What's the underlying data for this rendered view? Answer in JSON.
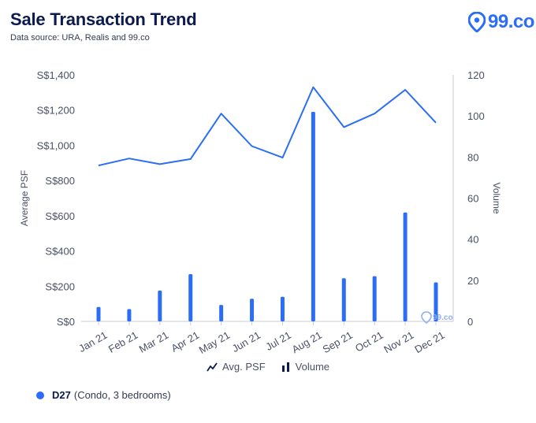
{
  "header": {
    "title": "Sale Transaction Trend",
    "subtitle": "Data source: URA, Realis and 99.co",
    "brand": "99.co"
  },
  "legend": {
    "line_label": "Avg. PSF",
    "bar_label": "Volume"
  },
  "footer": {
    "district": "D27",
    "description": "(Condo, 3 bedrooms)"
  },
  "watermark": "99.co",
  "colors": {
    "accent": "#2b6ef5",
    "title": "#0d1b4c"
  },
  "chart_data": {
    "type": "bar+line",
    "categories": [
      "Jan 21",
      "Feb 21",
      "Mar 21",
      "Apr 21",
      "May 21",
      "Jun 21",
      "Jul 21",
      "Aug 21",
      "Sep 21",
      "Oct 21",
      "Nov 21",
      "Dec 21"
    ],
    "series": [
      {
        "name": "Avg. PSF",
        "type": "line",
        "axis": "left",
        "values": [
          885,
          925,
          893,
          922,
          1180,
          995,
          930,
          1330,
          1103,
          1180,
          1315,
          1128
        ]
      },
      {
        "name": "Volume",
        "type": "bar",
        "axis": "right",
        "values": [
          7,
          6,
          15,
          23,
          8,
          11,
          12,
          102,
          21,
          22,
          53,
          19
        ]
      }
    ],
    "ylabel": "Average PSF",
    "y2label": "Volume",
    "ylim": [
      0,
      1400
    ],
    "y2lim": [
      0,
      120
    ],
    "yticks": [
      "S$0",
      "S$200",
      "S$400",
      "S$600",
      "S$800",
      "S$1,000",
      "S$1,200",
      "S$1,400"
    ],
    "y2ticks": [
      "0",
      "20",
      "40",
      "60",
      "80",
      "100",
      "120"
    ],
    "grid": false,
    "legend_position": "bottom-center"
  }
}
